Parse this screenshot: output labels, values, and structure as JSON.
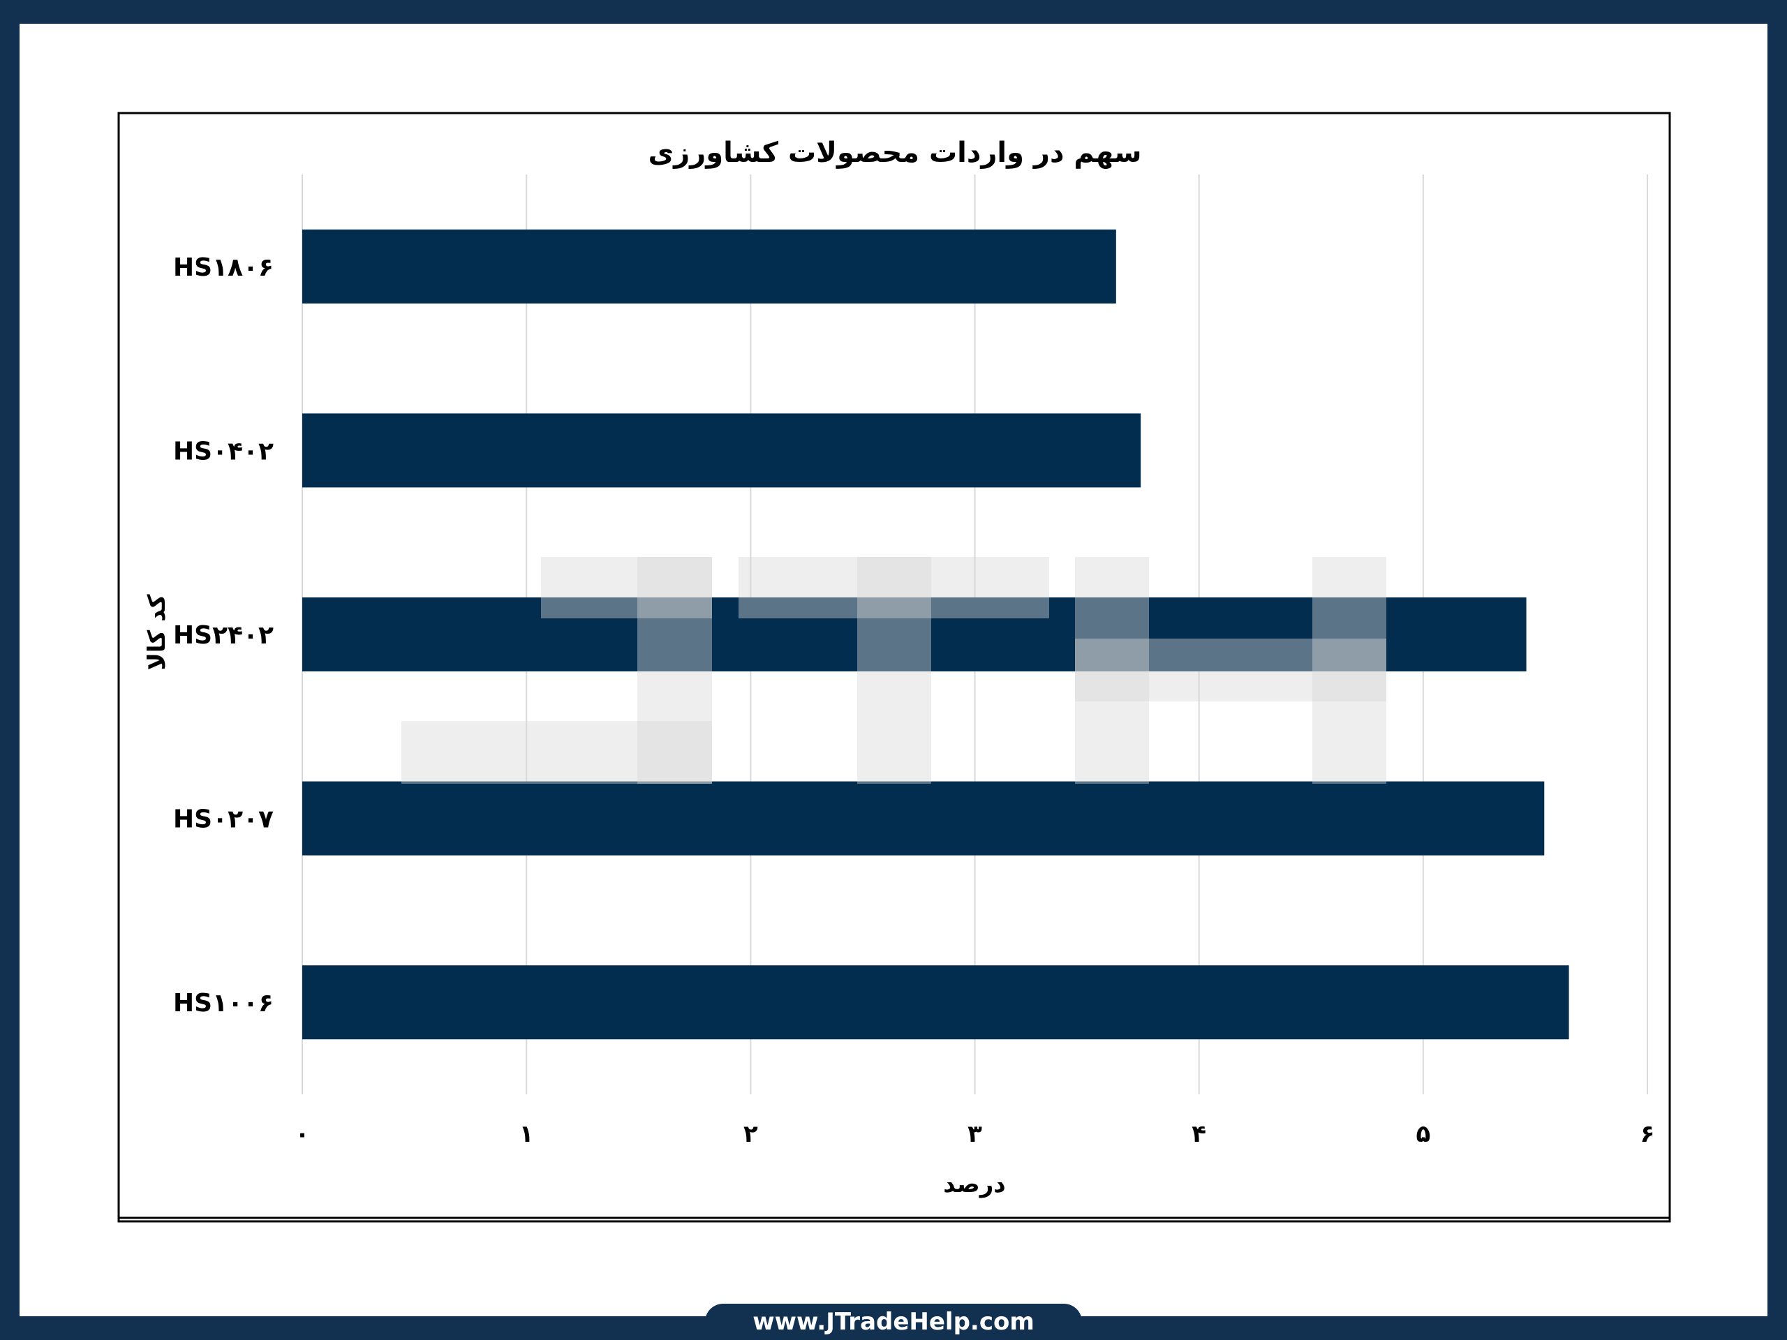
{
  "colors": {
    "frame": "#12304f",
    "bar": "#032d4f",
    "grid": "#d9d9d9",
    "watermark": "#e6e6e6"
  },
  "footer": {
    "url": "www.JTradeHelp.com"
  },
  "watermark": {
    "text": "JTH"
  },
  "chart_data": {
    "type": "bar",
    "orientation": "horizontal",
    "title": "سهم در واردات محصولات کشاورزی",
    "xlabel": "درصد",
    "ylabel": "کد کالا",
    "categories": [
      "HS۱۸۰۶",
      "HS۰۴۰۲",
      "HS۲۴۰۲",
      "HS۰۲۰۷",
      "HS۱۰۰۶"
    ],
    "values": [
      3.63,
      3.74,
      5.46,
      5.54,
      5.65
    ],
    "xlim": [
      0,
      6
    ],
    "xticks": [
      0,
      1,
      2,
      3,
      4,
      5,
      6
    ],
    "xtick_labels": [
      "۰",
      "۱",
      "۲",
      "۳",
      "۴",
      "۵",
      "۶"
    ],
    "grid": "vertical",
    "legend": "none"
  }
}
